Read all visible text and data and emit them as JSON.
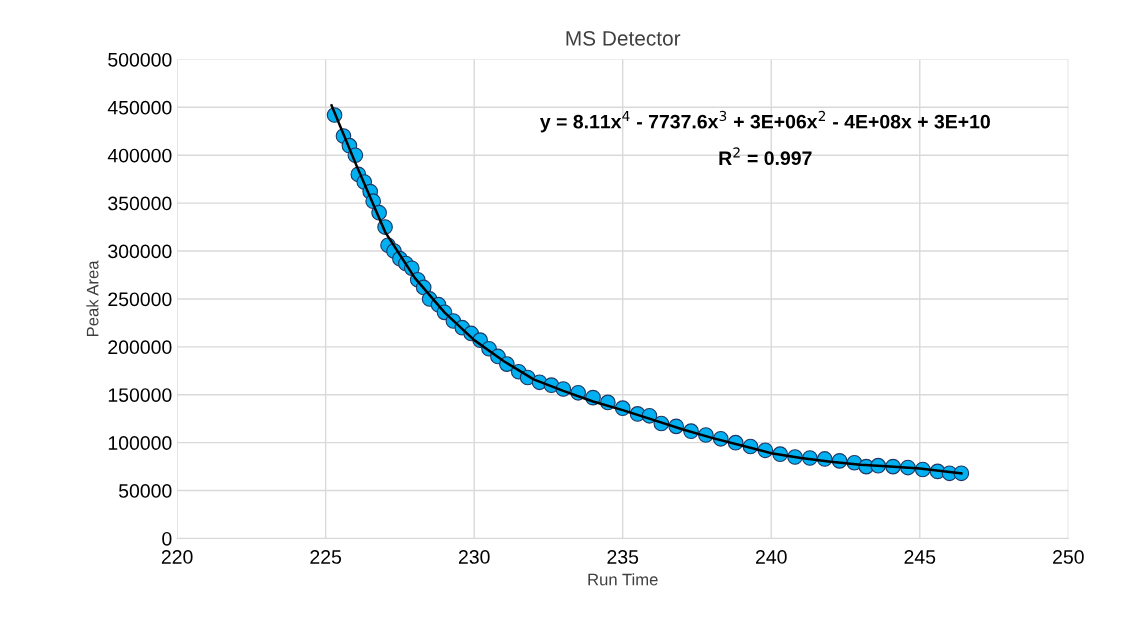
{
  "chart_data": {
    "type": "scatter",
    "title": "MS Detector",
    "xlabel": "Run Time",
    "ylabel": "Peak Area",
    "xlim": [
      220,
      250
    ],
    "xticks": [
      220,
      225,
      230,
      235,
      240,
      245,
      250
    ],
    "ylim": [
      0,
      500000
    ],
    "yticks": [
      0,
      50000,
      100000,
      150000,
      200000,
      250000,
      300000,
      350000,
      400000,
      450000,
      500000
    ],
    "grid": true,
    "marker": "circle",
    "annotations": [
      "y = 8.11x$^{4}$ - 7737.6x$^{3}$ + 3E+06x$^{2}$ - 4E+08x + 3E+10",
      "R$^{2}$ = 0.997"
    ],
    "series": [
      {
        "color": "#00b0f0",
        "x": [
          225.3,
          225.6,
          225.8,
          226.0,
          226.1,
          226.3,
          226.5,
          226.6,
          226.8,
          227.0,
          227.1,
          227.3,
          227.5,
          227.7,
          227.9,
          228.1,
          228.3,
          228.5,
          228.8,
          229.0,
          229.3,
          229.6,
          229.9,
          230.2,
          230.5,
          230.8,
          231.1,
          231.5,
          231.8,
          232.2,
          232.6,
          233.0,
          233.5,
          234.0,
          234.5,
          235.0,
          235.5,
          235.9,
          236.3,
          236.8,
          237.3,
          237.8,
          238.3,
          238.8,
          239.3,
          239.8,
          240.3,
          240.8,
          241.3,
          241.8,
          242.3,
          242.8,
          243.2,
          243.6,
          244.1,
          244.6,
          245.1,
          245.6,
          246.0,
          246.4
        ],
        "values": [
          442000,
          420000,
          410000,
          400000,
          380000,
          372000,
          362000,
          352000,
          340000,
          325000,
          306000,
          300000,
          292000,
          287000,
          282000,
          270000,
          262000,
          250000,
          244000,
          236000,
          227000,
          220000,
          214000,
          207000,
          198000,
          190000,
          182000,
          174000,
          168000,
          163000,
          160000,
          156000,
          152000,
          147000,
          142000,
          136000,
          130000,
          128000,
          120000,
          117000,
          112000,
          108000,
          104000,
          100000,
          96000,
          92000,
          88000,
          85000,
          84000,
          83000,
          81000,
          79000,
          75000,
          76000,
          75000,
          74000,
          72000,
          70000,
          68000,
          68000
        ]
      },
      {
        "type": "line",
        "color": "#000000",
        "line_style": "solid",
        "marker": "none",
        "x": [
          225.2,
          226,
          227,
          228,
          229,
          230,
          231,
          232,
          233,
          234,
          235,
          236,
          237,
          238,
          239,
          240,
          241,
          242,
          243,
          244,
          245,
          246.4
        ],
        "values": [
          452000,
          392000,
          320000,
          272000,
          236000,
          207000,
          185000,
          166000,
          154000,
          143000,
          134000,
          124000,
          114000,
          105000,
          97000,
          89000,
          84000,
          80000,
          77000,
          75000,
          73000,
          68000
        ]
      }
    ]
  }
}
